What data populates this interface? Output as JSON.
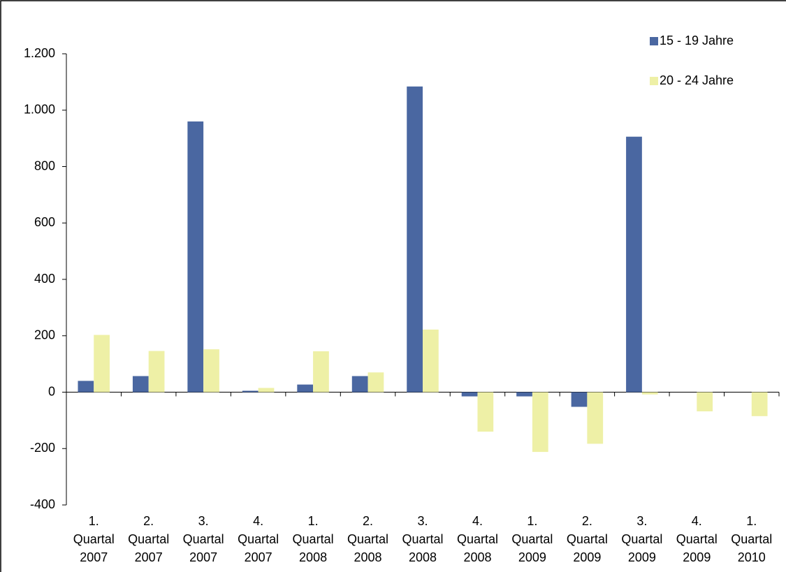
{
  "chart_data": {
    "type": "bar",
    "categories": [
      "1. Quartal 2007",
      "2. Quartal 2007",
      "3. Quartal 2007",
      "4. Quartal 2007",
      "1. Quartal 2008",
      "2. Quartal 2008",
      "3. Quartal 2008",
      "4. Quartal 2008",
      "1. Quartal 2009",
      "2. Quartal 2009",
      "3. Quartal 2009",
      "4. Quartal 2009",
      "1. Quartal 2010"
    ],
    "series": [
      {
        "name": "15 - 19 Jahre",
        "color": "#4a67a1",
        "values": [
          40,
          57,
          960,
          5,
          27,
          57,
          1084,
          -15,
          -15,
          -52,
          906,
          0,
          0
        ]
      },
      {
        "name": "20 - 24 Jahre",
        "color": "#eef0a6",
        "values": [
          203,
          146,
          152,
          15,
          145,
          70,
          222,
          -140,
          -212,
          -183,
          -8,
          -68,
          -85
        ]
      }
    ],
    "ylim": [
      -400,
      1200
    ],
    "yticks": [
      -400,
      -200,
      0,
      200,
      400,
      600,
      800,
      {
        "value": 1000,
        "label": "1.000"
      },
      {
        "value": 1200,
        "label": "1.200"
      }
    ],
    "legend": "top-right"
  }
}
